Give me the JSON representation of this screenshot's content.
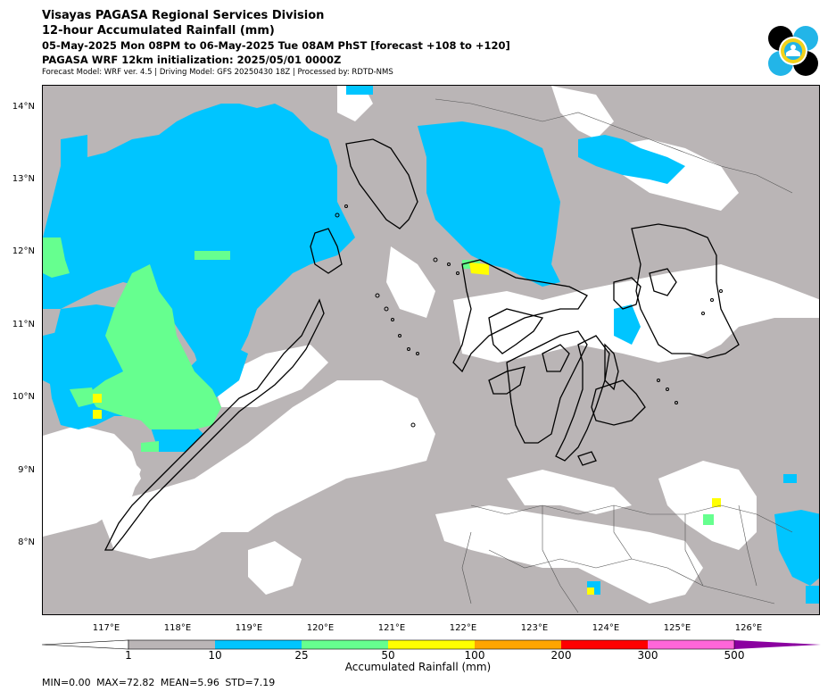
{
  "header": {
    "line1": "Visayas PAGASA Regional Services Division",
    "line2": "12-hour Accumulated Rainfall (mm)",
    "line3": "05-May-2025 Mon 08PM to 06-May-2025 Tue 08AM PhST [forecast +108 to +120]",
    "line4": "PAGASA WRF 12km initialization: 2025/05/01 0000Z",
    "line5": "Forecast Model: WRF ver. 4.5 | Driving Model: GFS 20250430 18Z | Processed by: RDTD-NMS"
  },
  "logo": {
    "icon": "pagasa-seal-icon",
    "colors": [
      "#000000",
      "#22b5e8",
      "#f2d21b",
      "#ffffff"
    ]
  },
  "map": {
    "extent": {
      "lon": [
        116.0,
        126.9
      ],
      "lat": [
        7.0,
        14.3
      ]
    },
    "lat_labels": [
      "14°N",
      "13°N",
      "12°N",
      "11°N",
      "10°N",
      "9°N",
      "8°N"
    ],
    "lat_values": [
      14,
      13,
      12,
      11,
      10,
      9,
      8
    ],
    "lon_labels": [
      "117°E",
      "118°E",
      "119°E",
      "120°E",
      "121°E",
      "122°E",
      "123°E",
      "124°E",
      "125°E",
      "126°E"
    ],
    "lon_values": [
      117,
      118,
      119,
      120,
      121,
      122,
      123,
      124,
      125,
      126
    ],
    "background_color": "#bab5b6",
    "dry_color": "#ffffff",
    "coastline_color": "#000000",
    "rain_areas": [
      {
        "category": "10-25",
        "color": "#00c5ff",
        "lon": [
          116.0,
          120.4
        ],
        "lat": [
          10.3,
          13.8
        ],
        "note": "Palawan / West Philippine Sea band"
      },
      {
        "category": "10-25",
        "color": "#00c5ff",
        "lon": [
          121.6,
          123.3
        ],
        "lat": [
          11.9,
          13.3
        ],
        "note": "Sibuyan Sea / Masbate"
      },
      {
        "category": "10-25",
        "color": "#00c5ff",
        "lon": [
          123.6,
          124.6
        ],
        "lat": [
          12.8,
          13.5
        ],
        "note": "Bicol"
      },
      {
        "category": "25-50",
        "color": "#66ff8f",
        "lon": [
          116.8,
          118.8
        ],
        "lat": [
          9.7,
          11.7
        ],
        "note": "West of Palawan"
      },
      {
        "category": "50-100",
        "color": "#ffff00",
        "lon": [
          122.1,
          122.2
        ],
        "lat": [
          11.7,
          11.8
        ],
        "note": "Northern Panay"
      }
    ]
  },
  "colorbar": {
    "label": "Accumulated Rainfall (mm)",
    "ticks": [
      "1",
      "10",
      "25",
      "50",
      "100",
      "200",
      "300",
      "500"
    ],
    "colors": [
      "#bab5b6",
      "#00c5ff",
      "#66ff8f",
      "#ffff00",
      "#ffa500",
      "#ff0000",
      "#ff66d9",
      "#8b00a0"
    ],
    "extend": "both"
  },
  "stats": {
    "text": "MIN=0.00   MAX=72.82   MEAN=5.96   STD=7.19",
    "min": 0.0,
    "max": 72.82,
    "mean": 5.96,
    "std": 7.19
  }
}
